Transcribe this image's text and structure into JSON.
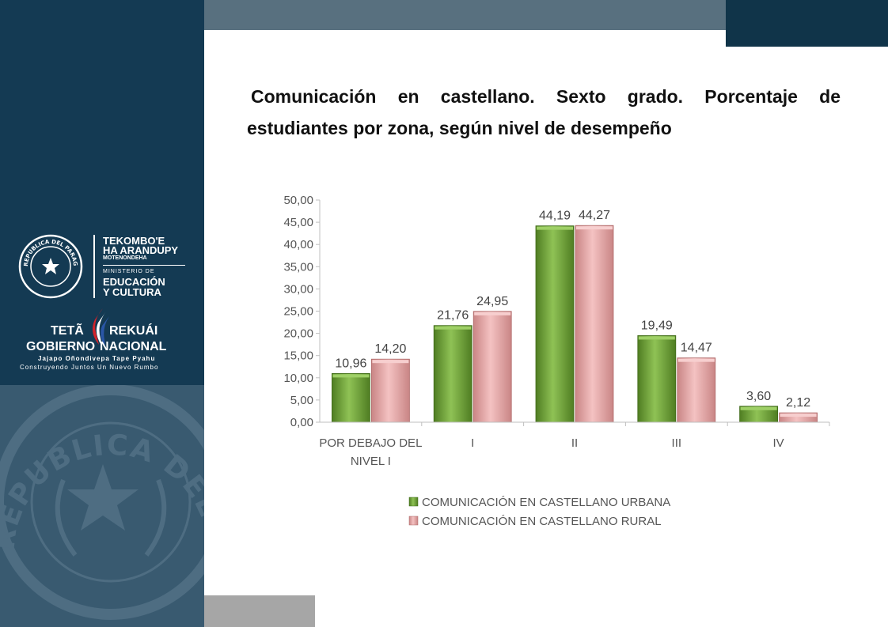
{
  "logos": {
    "ministry_line1": "TEKOMBO'E",
    "ministry_line2": "HA ARANDUPY",
    "ministry_line3": "MOTENONDEHA",
    "ministry_line4": "MINISTERIO DE",
    "ministry_line5": "EDUCACIÓN",
    "ministry_line6": "Y CULTURA",
    "seal_text": "REPUBLICA DEL PARAGUAY",
    "gov_teta": "TETÃ",
    "gov_rekuai": "REKUÁI",
    "gov_gobierno": "GOBIERNO",
    "gov_nacional": "NACIONAL",
    "gov_tagline1": "Jajapo Oñondivepa Tape Pyahu",
    "gov_tagline2": "Construyendo Juntos Un Nuevo Rumbo",
    "watermark_text": "REPUBLICA DEL PARAGUAY"
  },
  "colors": {
    "sidebar": "#143a53",
    "urbana": "#6fa23a",
    "rural": "#e7a3a3"
  },
  "slide_title": "Comunicación en castellano. Sexto grado. Porcentaje de estudiantes por zona, según nivel de desempeño",
  "chart_data": {
    "type": "bar",
    "title": "",
    "categories": [
      "POR DEBAJO DEL NIVEL I",
      "I",
      "II",
      "III",
      "IV"
    ],
    "series": [
      {
        "name": "COMUNICACIÓN EN CASTELLANO URBANA",
        "values": [
          10.96,
          21.76,
          44.19,
          19.49,
          3.6
        ],
        "labels": [
          "10,96",
          "21,76",
          "44,19",
          "19,49",
          "3,60"
        ]
      },
      {
        "name": "COMUNICACIÓN EN CASTELLANO RURAL",
        "values": [
          14.2,
          24.95,
          44.27,
          14.47,
          2.12
        ],
        "labels": [
          "14,20",
          "24,95",
          "44,27",
          "14,47",
          "2,12"
        ]
      }
    ],
    "yticks": [
      "0,00",
      "5,00",
      "10,00",
      "15,00",
      "20,00",
      "25,00",
      "30,00",
      "35,00",
      "40,00",
      "45,00",
      "50,00"
    ],
    "ylim": [
      0,
      50
    ],
    "grid": false,
    "legend_position": "bottom"
  }
}
